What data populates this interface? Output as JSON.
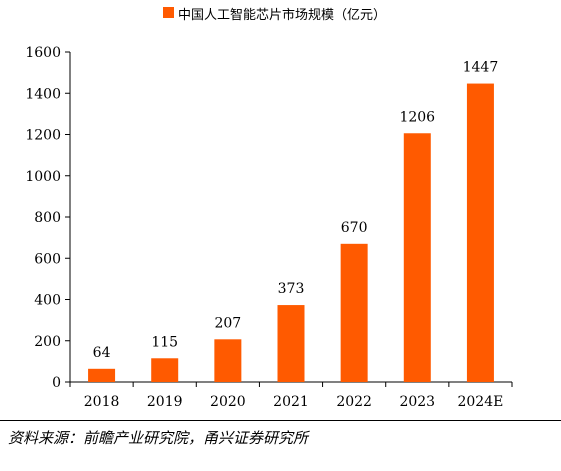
{
  "colors": {
    "bar": "#ff5a00",
    "axis": "#000000",
    "text": "#000000"
  },
  "chart_data": {
    "type": "bar",
    "legend": {
      "label": "中国人工智能芯片市场规模（亿元）",
      "position": "top"
    },
    "categories": [
      "2018",
      "2019",
      "2020",
      "2021",
      "2022",
      "2023",
      "2024E"
    ],
    "series": [
      {
        "name": "中国人工智能芯片市场规模（亿元）",
        "values": [
          64,
          115,
          207,
          373,
          670,
          1206,
          1447
        ]
      }
    ],
    "data_labels": [
      "64",
      "115",
      "207",
      "373",
      "670",
      "1206",
      "1447"
    ],
    "ylim": [
      0,
      1600
    ],
    "yticks": [
      0,
      200,
      400,
      600,
      800,
      1000,
      1200,
      1400,
      1600
    ],
    "grid": false
  },
  "source": "资料来源：前瞻产业研究院，甬兴证券研究所"
}
